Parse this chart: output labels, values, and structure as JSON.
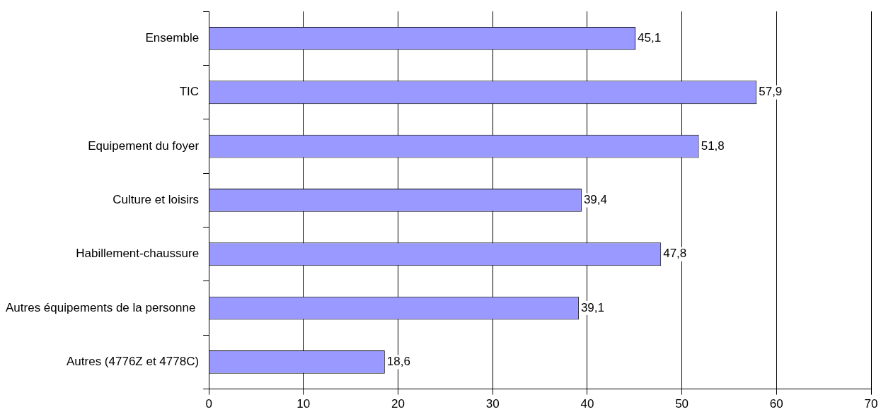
{
  "chart_data": {
    "type": "bar",
    "orientation": "horizontal",
    "categories": [
      "Ensemble",
      "TIC",
      "Equipement du foyer",
      "Culture et loisirs",
      "Habillement-chaussure",
      "Autres équipements de la personne ",
      "Autres (4776Z et 4778C)"
    ],
    "values": [
      45.1,
      57.9,
      51.8,
      39.4,
      47.8,
      39.1,
      18.6
    ],
    "value_labels": [
      "45,1",
      "57,9",
      "51,8",
      "39,4",
      "47,8",
      "39,1",
      "18,6"
    ],
    "color": "#9999ff",
    "xlim": [
      0,
      70
    ],
    "xticks": [
      0,
      10,
      20,
      30,
      40,
      50,
      60,
      70
    ],
    "grid": "x",
    "legend": false
  }
}
